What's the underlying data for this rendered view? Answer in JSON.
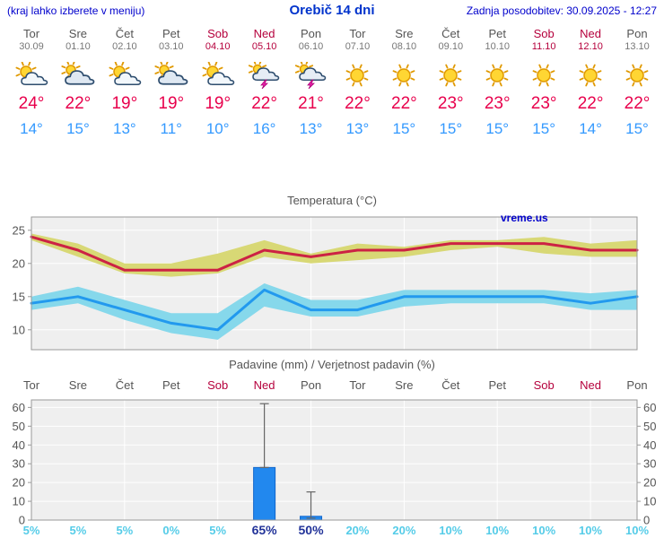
{
  "header": {
    "note": "(kraj lahko izberete v meniju)",
    "title": "Orebič 14 dni",
    "updated": "Zadnja posodobitev: 30.09.2025 - 12:27"
  },
  "watermark": "vreme.us",
  "colors": {
    "link_blue": "#0000cc",
    "weekend_red": "#b5003c",
    "weekday_gray": "#555555",
    "tmax_red": "#e8004c",
    "tmin_blue": "#3399ff",
    "max_band": "#d6d66e",
    "min_band": "#7fd6ea",
    "max_line": "#cc2244",
    "min_line": "#2299ee",
    "bar_fill": "#2288ee",
    "bar_edge": "#1166cc",
    "whisker_gray": "#666666",
    "prob_cyan": "#55cce8",
    "prob_navy": "#223399",
    "plot_bg": "#efefef",
    "grid": "#ffffff",
    "axis": "#999999",
    "text_gray": "#555555"
  },
  "days": [
    {
      "name": "Tor",
      "date": "30.09",
      "weekend": false,
      "icon": "sun-cloud",
      "tmax": "24°",
      "tmin": "14°"
    },
    {
      "name": "Sre",
      "date": "01.10",
      "weekend": false,
      "icon": "cloudy",
      "tmax": "22°",
      "tmin": "15°"
    },
    {
      "name": "Čet",
      "date": "02.10",
      "weekend": false,
      "icon": "sun-cloud",
      "tmax": "19°",
      "tmin": "13°"
    },
    {
      "name": "Pet",
      "date": "03.10",
      "weekend": false,
      "icon": "cloudy",
      "tmax": "19°",
      "tmin": "11°"
    },
    {
      "name": "Sob",
      "date": "04.10",
      "weekend": true,
      "icon": "sun-cloud",
      "tmax": "19°",
      "tmin": "10°"
    },
    {
      "name": "Ned",
      "date": "05.10",
      "weekend": true,
      "icon": "thunder",
      "tmax": "22°",
      "tmin": "16°"
    },
    {
      "name": "Pon",
      "date": "06.10",
      "weekend": false,
      "icon": "thunder",
      "tmax": "21°",
      "tmin": "13°"
    },
    {
      "name": "Tor",
      "date": "07.10",
      "weekend": false,
      "icon": "sun",
      "tmax": "22°",
      "tmin": "13°"
    },
    {
      "name": "Sre",
      "date": "08.10",
      "weekend": false,
      "icon": "sun",
      "tmax": "22°",
      "tmin": "15°"
    },
    {
      "name": "Čet",
      "date": "09.10",
      "weekend": false,
      "icon": "sun",
      "tmax": "23°",
      "tmin": "15°"
    },
    {
      "name": "Pet",
      "date": "10.10",
      "weekend": false,
      "icon": "sun",
      "tmax": "23°",
      "tmin": "15°"
    },
    {
      "name": "Sob",
      "date": "11.10",
      "weekend": true,
      "icon": "sun",
      "tmax": "23°",
      "tmin": "15°"
    },
    {
      "name": "Ned",
      "date": "12.10",
      "weekend": true,
      "icon": "sun",
      "tmax": "22°",
      "tmin": "14°"
    },
    {
      "name": "Pon",
      "date": "13.10",
      "weekend": false,
      "icon": "sun",
      "tmax": "22°",
      "tmin": "15°"
    }
  ],
  "chart_data": [
    {
      "type": "line",
      "title": "Temperatura (°C)",
      "x_labels": [
        "Tor",
        "Sre",
        "Čet",
        "Pet",
        "Sob",
        "Ned",
        "Pon",
        "Tor",
        "Sre",
        "Čet",
        "Pet",
        "Sob",
        "Ned",
        "Pon"
      ],
      "ylim": [
        7,
        27
      ],
      "yticks": [
        10,
        15,
        20,
        25
      ],
      "legend": "none",
      "grid": true,
      "series": [
        {
          "name": "max-temperature",
          "values": [
            24,
            22,
            19,
            19,
            19,
            22,
            21,
            22,
            22,
            23,
            23,
            23,
            22,
            22
          ]
        },
        {
          "name": "min-temperature",
          "values": [
            14,
            15,
            13,
            11,
            10,
            16,
            13,
            13,
            15,
            15,
            15,
            15,
            14,
            15
          ]
        }
      ],
      "bands": [
        {
          "name": "max-range",
          "upper": [
            24.5,
            23,
            20,
            20,
            21.5,
            23.5,
            21.5,
            23,
            22.5,
            23.5,
            23.5,
            24,
            23,
            23.5
          ],
          "lower": [
            23.5,
            21,
            18.5,
            18,
            18.5,
            21,
            20,
            20.5,
            21,
            22,
            22.5,
            21.5,
            21,
            21
          ]
        },
        {
          "name": "min-range",
          "upper": [
            15,
            16.5,
            14.5,
            12.5,
            12.5,
            17,
            14.5,
            14.5,
            16,
            16,
            16,
            16,
            15.5,
            16
          ],
          "lower": [
            13,
            14,
            11.5,
            9.5,
            8.5,
            13.5,
            12,
            12,
            13.5,
            14,
            14,
            14,
            13,
            13
          ]
        }
      ]
    },
    {
      "type": "bar",
      "title": "Padavine (mm) / Verjetnost padavin (%)",
      "x_labels": [
        "Tor",
        "Sre",
        "Čet",
        "Pet",
        "Sob",
        "Ned",
        "Pon",
        "Tor",
        "Sre",
        "Čet",
        "Pet",
        "Sob",
        "Ned",
        "Pon"
      ],
      "ylim": [
        0,
        64
      ],
      "yticks": [
        0,
        10,
        20,
        30,
        40,
        50,
        60
      ],
      "values": [
        0,
        0,
        0,
        0,
        0,
        28,
        2,
        0,
        0,
        0,
        0,
        0,
        0,
        0
      ],
      "whisker_low": [
        null,
        null,
        null,
        null,
        null,
        28,
        1,
        null,
        null,
        null,
        null,
        null,
        null,
        null
      ],
      "whisker_high": [
        null,
        null,
        null,
        null,
        null,
        62,
        15,
        null,
        null,
        null,
        null,
        null,
        null,
        null
      ],
      "probabilities": [
        "5%",
        "5%",
        "5%",
        "0%",
        "5%",
        "65%",
        "50%",
        "20%",
        "20%",
        "10%",
        "10%",
        "10%",
        "10%",
        "10%"
      ],
      "prob_highlight": [
        false,
        false,
        false,
        false,
        false,
        true,
        true,
        false,
        false,
        false,
        false,
        false,
        false,
        false
      ]
    }
  ]
}
